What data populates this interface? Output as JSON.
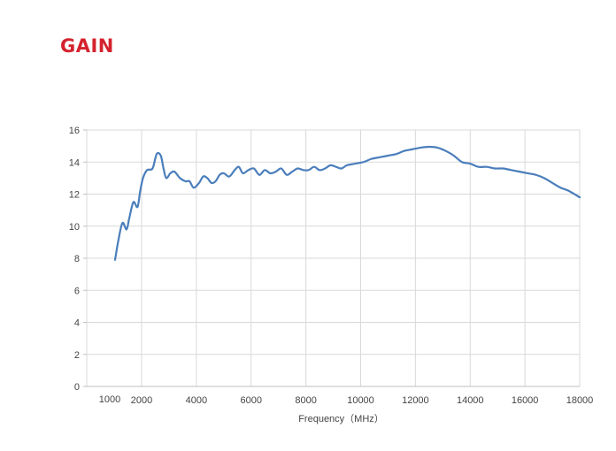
{
  "header": {
    "title": "GAIN"
  },
  "colors": {
    "title": "#d4232e",
    "line": "#4a7ebb",
    "grid": "#d9d9d9",
    "axis": "#bfbfbf",
    "text": "#444444"
  },
  "chart_data": {
    "type": "line",
    "title": "",
    "xlabel": "Frequency（MHz）",
    "ylabel": "",
    "xlim": [
      1000,
      18000
    ],
    "ylim": [
      0,
      16
    ],
    "x_ticks": [
      2000,
      4000,
      6000,
      8000,
      10000,
      12000,
      14000,
      16000,
      18000
    ],
    "x_tick_labels": [
      "2000",
      "4000",
      "6000",
      "8000",
      "10000",
      "12000",
      "14000",
      "16000",
      "18000"
    ],
    "extra_x_label": "1000",
    "y_ticks": [
      0,
      2,
      4,
      6,
      8,
      10,
      12,
      14,
      16
    ],
    "y_tick_labels": [
      "0",
      "2",
      "4",
      "6",
      "8",
      "10",
      "12",
      "14",
      "16"
    ],
    "grid": true,
    "legend": "none",
    "series": [
      {
        "x": [
          1000,
          1150,
          1300,
          1450,
          1550,
          1700,
          1850,
          1950,
          2050,
          2200,
          2400,
          2550,
          2700,
          2800,
          2900,
          3050,
          3200,
          3400,
          3600,
          3750,
          3900,
          4100,
          4250,
          4400,
          4550,
          4700,
          4850,
          5000,
          5200,
          5400,
          5550,
          5700,
          5900,
          6100,
          6300,
          6500,
          6700,
          6900,
          7100,
          7300,
          7500,
          7700,
          7900,
          8100,
          8300,
          8500,
          8700,
          8900,
          9100,
          9300,
          9500,
          9800,
          10100,
          10400,
          10700,
          11000,
          11300,
          11600,
          11900,
          12200,
          12500,
          12800,
          13100,
          13400,
          13700,
          14000,
          14300,
          14600,
          14900,
          15200,
          15500,
          15800,
          16100,
          16400,
          16700,
          17000,
          17300,
          17600,
          18000
        ],
        "y": [
          7.9,
          9.1,
          10.2,
          9.8,
          10.5,
          11.5,
          11.2,
          12.2,
          13.0,
          13.5,
          13.6,
          14.5,
          14.4,
          13.6,
          13.0,
          13.3,
          13.4,
          13.0,
          12.8,
          12.8,
          12.4,
          12.7,
          13.1,
          13.0,
          12.7,
          12.8,
          13.2,
          13.3,
          13.1,
          13.5,
          13.7,
          13.3,
          13.5,
          13.6,
          13.2,
          13.5,
          13.3,
          13.4,
          13.6,
          13.2,
          13.4,
          13.6,
          13.5,
          13.5,
          13.7,
          13.5,
          13.6,
          13.8,
          13.7,
          13.6,
          13.8,
          13.9,
          14.0,
          14.2,
          14.3,
          14.4,
          14.5,
          14.7,
          14.8,
          14.9,
          14.95,
          14.9,
          14.7,
          14.4,
          14.0,
          13.9,
          13.7,
          13.7,
          13.6,
          13.6,
          13.5,
          13.4,
          13.3,
          13.2,
          13.0,
          12.7,
          12.4,
          12.2,
          11.8
        ]
      }
    ]
  }
}
